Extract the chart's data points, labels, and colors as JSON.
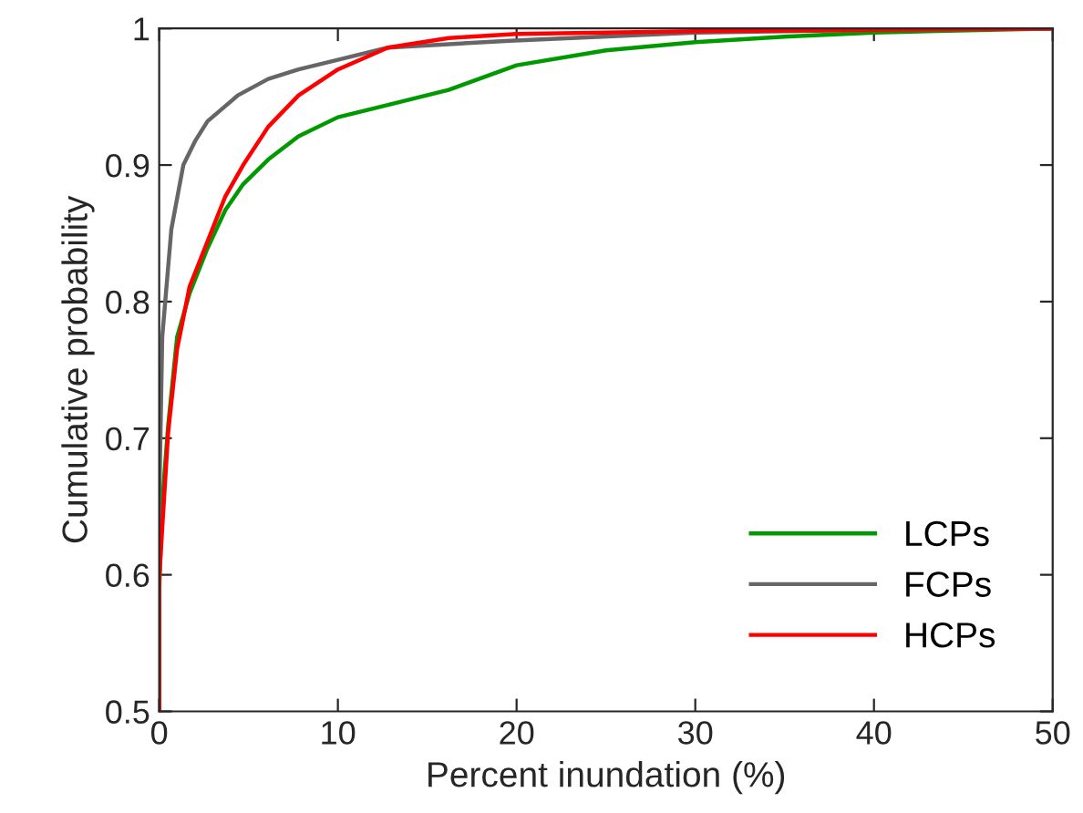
{
  "chart_data": {
    "type": "line",
    "xlabel": "Percent inundation (%)",
    "ylabel": "Cumulative probability",
    "xlim": [
      0,
      50
    ],
    "xticks": [
      0,
      10,
      20,
      30,
      40,
      50
    ],
    "ylim": [
      0.5,
      1
    ],
    "yticks": [
      0.5,
      0.6,
      0.7,
      0.8,
      0.9,
      1
    ],
    "grid": false,
    "legend": "bottom right",
    "marker": "none",
    "line_style": "solid",
    "series": [
      {
        "name": "LCPs",
        "color": "#009900",
        "x": [
          0,
          0,
          0.17,
          0.5,
          1.0,
          1.7,
          2.7,
          3.7,
          4.7,
          6.1,
          7.8,
          10,
          12.8,
          16.2,
          20,
          25,
          30,
          35,
          40,
          50
        ],
        "values": [
          0.5,
          0.588,
          0.653,
          0.709,
          0.774,
          0.806,
          0.839,
          0.867,
          0.886,
          0.904,
          0.921,
          0.935,
          0.944,
          0.955,
          0.973,
          0.984,
          0.99,
          0.994,
          0.997,
          1.0
        ]
      },
      {
        "name": "FCPs",
        "color": "#666666",
        "x": [
          0,
          0,
          0.17,
          0.68,
          1.35,
          2.03,
          2.7,
          4.4,
          6.1,
          7.8,
          10,
          12.8,
          19.6,
          30,
          40,
          50
        ],
        "values": [
          0.5,
          0.65,
          0.774,
          0.853,
          0.9,
          0.918,
          0.932,
          0.951,
          0.963,
          0.97,
          0.977,
          0.986,
          0.991,
          0.997,
          0.999,
          1.0
        ]
      },
      {
        "name": "HCPs",
        "color": "#ff0000",
        "x": [
          0,
          0,
          0.17,
          0.5,
          1.0,
          1.7,
          2.7,
          3.7,
          4.7,
          6.1,
          7.8,
          10,
          12.8,
          16.2,
          20,
          30,
          40,
          50
        ],
        "values": [
          0.5,
          0.597,
          0.634,
          0.704,
          0.765,
          0.811,
          0.844,
          0.877,
          0.9,
          0.928,
          0.951,
          0.97,
          0.986,
          0.993,
          0.996,
          0.998,
          0.999,
          1.0
        ]
      }
    ]
  }
}
